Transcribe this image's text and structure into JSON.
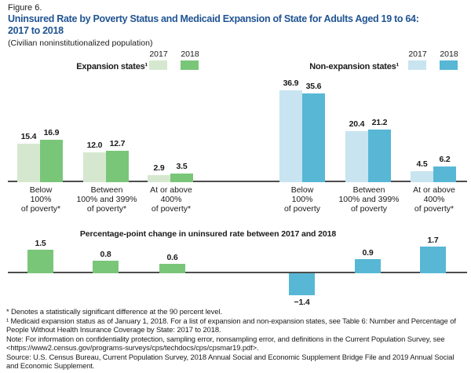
{
  "figure": {
    "number": "Figure 6.",
    "title": "Uninsured Rate by Poverty Status and Medicaid Expansion of State for Adults Aged 19 to 64:\n2017 to 2018",
    "subtitle": "(Civilian noninstitutionalized population)"
  },
  "colors": {
    "title_blue": "#205493",
    "green_2017": "#d5e8cf",
    "green_2018": "#79c679",
    "blue_2017": "#c8e4f0",
    "blue_2018": "#58b7d5",
    "axis": "#4d4d4d",
    "text": "#1a1a1a"
  },
  "chart_data": [
    {
      "type": "bar",
      "group": "expansion",
      "title": "Expansion states¹",
      "legend_position": "top-right",
      "grid": false,
      "unit": "percent",
      "ylim": [
        0,
        40
      ],
      "categories": [
        "Below\n100%\nof poverty*",
        "Between\n100% and 399%\nof poverty*",
        "At or above\n400%\nof poverty*"
      ],
      "series": [
        {
          "name": "2017",
          "values": [
            "15.4",
            "12.0",
            "2.9"
          ]
        },
        {
          "name": "2018",
          "values": [
            "16.9",
            "12.7",
            "3.5"
          ]
        }
      ]
    },
    {
      "type": "bar",
      "group": "non-expansion",
      "title": "Non-expansion states¹",
      "legend_position": "top-right",
      "grid": false,
      "unit": "percent",
      "ylim": [
        0,
        40
      ],
      "categories": [
        "Below\n100%\nof poverty",
        "Between\n100% and 399%\nof poverty",
        "At or above\n400%\nof poverty*"
      ],
      "series": [
        {
          "name": "2017",
          "values": [
            "36.9",
            "20.4",
            "4.5"
          ]
        },
        {
          "name": "2018",
          "values": [
            "35.6",
            "21.2",
            "6.2"
          ]
        }
      ]
    },
    {
      "type": "bar",
      "title": "Percentage-point change in uninsured rate between 2017 and 2018",
      "grid": false,
      "unit": "percentage-points",
      "ylim": [
        -2,
        2
      ],
      "bars": [
        {
          "label": "1.5",
          "value": 1.5,
          "group": "expansion"
        },
        {
          "label": "0.8",
          "value": 0.8,
          "group": "expansion"
        },
        {
          "label": "0.6",
          "value": 0.6,
          "group": "expansion"
        },
        {
          "label": "−1.4",
          "value": -1.4,
          "group": "non-expansion"
        },
        {
          "label": "0.9",
          "value": 0.9,
          "group": "non-expansion"
        },
        {
          "label": "1.7",
          "value": 1.7,
          "group": "non-expansion"
        }
      ]
    }
  ],
  "footnotes": {
    "asterisk": "* Denotes a statistically significant difference at the 90 percent level.",
    "expansion": "¹ Medicaid expansion status as of January 1, 2018. For a list of expansion and non-expansion states, see Table 6: Number and Percentage of People Without Health Insurance Coverage by State: 2017 to 2018.",
    "note": "Note: For information on confidentiality protection, sampling error, nonsampling error, and definitions in the Current Population Survey, see <https://www2.census.gov/programs-surveys/cps/techdocs/cps/cpsmar19.pdf>.",
    "source": "Source: U.S. Census Bureau, Current Population Survey, 2018 Annual Social and Economic Supplement Bridge File and 2019 Annual Social and Economic Supplement."
  }
}
